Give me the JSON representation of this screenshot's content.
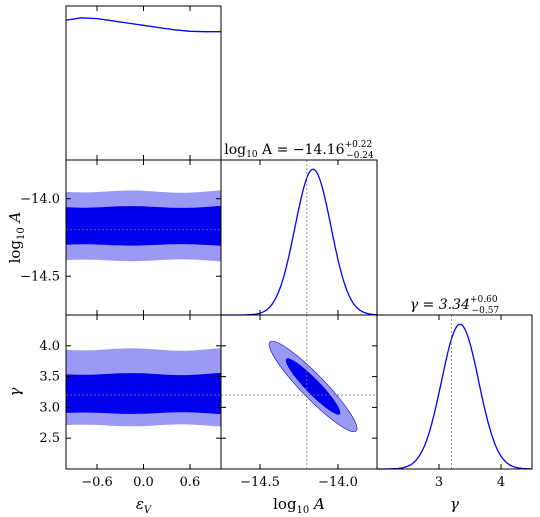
{
  "chart_data": {
    "type": "corner",
    "colors": {
      "line": "#0000ff",
      "inner": "#0000ee",
      "outer": "#9a9af5",
      "truth": "#777777"
    },
    "truth_lines": {
      "log10_A": -14.2,
      "gamma": 3.2
    },
    "parameters": [
      {
        "name": "epsilon_V",
        "label": "ε",
        "sub": "V",
        "range": [
          -1.0,
          1.0
        ],
        "ticks": [
          -0.6,
          0.0,
          0.6
        ],
        "tick_labels": [
          "−0.6",
          "0.0",
          "0.6"
        ]
      },
      {
        "name": "log10_A",
        "label": "log",
        "sub": "10",
        "label_tail": " A",
        "range": [
          -14.75,
          -13.75
        ],
        "ticks": [
          -14.5,
          -14.0
        ],
        "tick_labels": [
          "−14.5",
          "−14.0"
        ]
      },
      {
        "name": "gamma",
        "label": "γ",
        "range": [
          2.0,
          4.5
        ],
        "ticks": [
          2.5,
          3.0,
          3.5,
          4.0
        ],
        "tick_labels": [
          "2.5",
          "3.0",
          "3.5",
          "4.0"
        ],
        "x_ticks": [
          3,
          4
        ],
        "x_tick_labels": [
          "3",
          "4"
        ]
      }
    ],
    "titles": [
      {
        "param": "log10_A",
        "prefix": "log",
        "sub": "10",
        "mid": " A = −14.16",
        "sup": "+0.22",
        "sub2": "−0.24"
      },
      {
        "param": "gamma",
        "prefix": "γ = 3.34",
        "sup": "+0.60",
        "sub2": "−0.57"
      }
    ],
    "marginals": {
      "epsilon_V": {
        "x": [
          -1.0,
          -0.8,
          -0.6,
          -0.4,
          -0.2,
          0.0,
          0.2,
          0.4,
          0.6,
          0.8,
          1.0
        ],
        "y": [
          0.95,
          0.965,
          0.96,
          0.945,
          0.93,
          0.915,
          0.9,
          0.885,
          0.875,
          0.872,
          0.872
        ]
      },
      "log10_A": {
        "mean": -14.16,
        "sigma": 0.115
      },
      "gamma": {
        "mean": 3.34,
        "sigma": 0.3
      }
    },
    "joint": {
      "epsilon_V_log10_A": {
        "inner": [
          -14.3,
          -14.05
        ],
        "outer": [
          -14.4,
          -13.95
        ]
      },
      "epsilon_V_gamma": {
        "inner": [
          2.9,
          3.55
        ],
        "outer": [
          2.7,
          3.95
        ]
      },
      "log10_A_gamma": {
        "center": [
          -14.16,
          3.34
        ],
        "sigma_a": 0.115,
        "sigma_g": 0.3,
        "rho": -0.93
      }
    }
  }
}
